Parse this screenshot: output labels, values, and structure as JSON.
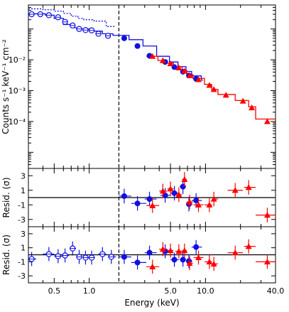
{
  "chart_data": {
    "type": "scatter",
    "x_axis": {
      "label": "Energy (keV)",
      "scale": "log",
      "range": [
        0.3,
        40.0
      ],
      "tick_labels": [
        "0.5",
        "1.0",
        "5.0",
        "10.0",
        "40.0"
      ],
      "tick_values": [
        0.5,
        1.0,
        5.0,
        10.0,
        40.0
      ]
    },
    "vline_energy": 1.8,
    "colors": {
      "blue": "#1010e0",
      "red": "#ff0000",
      "black": "#000000"
    },
    "panels": [
      {
        "id": "spectrum",
        "ylabel": "Counts s⁻¹ keV⁻¹ cm⁻²",
        "y_scale": "log",
        "y_range": [
          3e-06,
          0.6
        ],
        "y_tick_labels": [
          "10⁻²",
          "10⁻³",
          "10⁻⁴"
        ],
        "y_tick_values": [
          0.01,
          0.001,
          0.0001
        ],
        "series": [
          {
            "marker": "open-circle",
            "color": "blue",
            "points": [
              {
                "x": 0.32,
                "y": 0.3
              },
              {
                "x": 0.38,
                "y": 0.3
              },
              {
                "x": 0.45,
                "y": 0.28
              },
              {
                "x": 0.54,
                "y": 0.24
              },
              {
                "x": 0.62,
                "y": 0.17
              },
              {
                "x": 0.72,
                "y": 0.13
              },
              {
                "x": 0.82,
                "y": 0.1
              },
              {
                "x": 0.93,
                "y": 0.092
              },
              {
                "x": 1.05,
                "y": 0.09
              },
              {
                "x": 1.2,
                "y": 0.07
              },
              {
                "x": 1.45,
                "y": 0.06
              }
            ]
          },
          {
            "marker": "filled-circle",
            "color": "blue",
            "points": [
              {
                "x": 2.0,
                "y": 0.05
              },
              {
                "x": 2.6,
                "y": 0.028
              },
              {
                "x": 3.3,
                "y": 0.0135
              },
              {
                "x": 4.5,
                "y": 0.0085
              },
              {
                "x": 5.4,
                "y": 0.0058
              },
              {
                "x": 6.4,
                "y": 0.0041
              },
              {
                "x": 7.2,
                "y": 0.0031
              },
              {
                "x": 8.3,
                "y": 0.0024
              }
            ]
          },
          {
            "marker": "filled-triangle",
            "color": "red",
            "points": [
              {
                "x": 3.5,
                "y": 0.013
              },
              {
                "x": 4.3,
                "y": 0.0095
              },
              {
                "x": 5.0,
                "y": 0.0075
              },
              {
                "x": 5.9,
                "y": 0.0055
              },
              {
                "x": 6.6,
                "y": 0.0043
              },
              {
                "x": 7.3,
                "y": 0.0031
              },
              {
                "x": 8.7,
                "y": 0.0023
              },
              {
                "x": 10.8,
                "y": 0.0015
              },
              {
                "x": 11.8,
                "y": 0.0011
              },
              {
                "x": 15.0,
                "y": 0.00072
              },
              {
                "x": 21.0,
                "y": 0.00046
              },
              {
                "x": 25.0,
                "y": 0.00028
              },
              {
                "x": 34.0,
                "y": 0.0001
              }
            ]
          }
        ],
        "model_steps": [
          {
            "color": "blue",
            "style": "dotted",
            "steps": [
              {
                "x": 0.3,
                "y": 0.45
              },
              {
                "x": 0.4,
                "y": 0.42
              },
              {
                "x": 0.5,
                "y": 0.38
              },
              {
                "x": 0.6,
                "y": 0.32
              },
              {
                "x": 0.7,
                "y": 0.26
              },
              {
                "x": 0.8,
                "y": 0.22
              },
              {
                "x": 0.9,
                "y": 0.2
              },
              {
                "x": 1.1,
                "y": 0.18
              },
              {
                "x": 1.4,
                "y": 0.12
              },
              {
                "x": 1.65,
                "y": 0.12
              }
            ]
          },
          {
            "color": "blue",
            "style": "solid",
            "steps": [
              {
                "x": 0.3,
                "y": 0.31
              },
              {
                "x": 0.42,
                "y": 0.28
              },
              {
                "x": 0.5,
                "y": 0.22
              },
              {
                "x": 0.6,
                "y": 0.14
              },
              {
                "x": 0.7,
                "y": 0.11
              },
              {
                "x": 0.78,
                "y": 0.1
              },
              {
                "x": 1.0,
                "y": 0.085
              },
              {
                "x": 1.3,
                "y": 0.07
              },
              {
                "x": 1.6,
                "y": 0.062
              },
              {
                "x": 2.2,
                "y": 0.045
              },
              {
                "x": 2.9,
                "y": 0.028
              },
              {
                "x": 3.8,
                "y": 0.013
              },
              {
                "x": 4.9,
                "y": 0.0085
              },
              {
                "x": 5.8,
                "y": 0.006
              },
              {
                "x": 6.8,
                "y": 0.0042
              },
              {
                "x": 7.6,
                "y": 0.003
              },
              {
                "x": 9.2,
                "y": 0.0022
              },
              {
                "x": 9.5,
                "y": 0.0022
              }
            ]
          },
          {
            "color": "red",
            "style": "solid",
            "steps": [
              {
                "x": 3.1,
                "y": 0.013
              },
              {
                "x": 3.9,
                "y": 0.0095
              },
              {
                "x": 4.7,
                "y": 0.0078
              },
              {
                "x": 5.3,
                "y": 0.0059
              },
              {
                "x": 6.3,
                "y": 0.0045
              },
              {
                "x": 6.9,
                "y": 0.0033
              },
              {
                "x": 7.8,
                "y": 0.0025
              },
              {
                "x": 9.8,
                "y": 0.0016
              },
              {
                "x": 11.3,
                "y": 0.0011
              },
              {
                "x": 12.8,
                "y": 0.00075
              },
              {
                "x": 18.0,
                "y": 0.00048
              },
              {
                "x": 23.5,
                "y": 0.0003
              },
              {
                "x": 27.0,
                "y": 0.00012
              },
              {
                "x": 40.0,
                "y": 0.00012
              }
            ]
          }
        ]
      },
      {
        "id": "residuals-1",
        "ylabel": "Resid. (σ)",
        "y_range": [
          -4,
          4
        ],
        "y_tick_labels": [
          "3",
          "1",
          "-1",
          "-3"
        ],
        "y_tick_values": [
          3,
          1,
          -1,
          -3
        ],
        "hline": 0,
        "series": [
          {
            "marker": "filled-circle",
            "color": "blue",
            "points": [
              {
                "x": 2.0,
                "y": 0.2,
                "xerr": [
                  1.8,
                  2.3
                ],
                "yerr": 1.0
              },
              {
                "x": 2.6,
                "y": -0.8,
                "xerr": [
                  2.3,
                  3.1
                ],
                "yerr": 1.0
              },
              {
                "x": 3.3,
                "y": -0.2,
                "xerr": [
                  3.0,
                  3.8
                ],
                "yerr": 1.0
              },
              {
                "x": 4.5,
                "y": 0.3,
                "xerr": [
                  4.1,
                  5.0
                ],
                "yerr": 1.0
              },
              {
                "x": 5.4,
                "y": 0.6,
                "xerr": [
                  5.0,
                  5.9
                ],
                "yerr": 1.0
              },
              {
                "x": 6.4,
                "y": 1.5,
                "xerr": [
                  6.0,
                  6.8
                ],
                "yerr": 1.0
              },
              {
                "x": 7.2,
                "y": -0.9,
                "xerr": [
                  6.8,
                  7.7
                ],
                "yerr": 1.0
              },
              {
                "x": 8.3,
                "y": -0.4,
                "xerr": [
                  7.6,
                  9.3
                ],
                "yerr": 1.0
              }
            ]
          },
          {
            "marker": "filled-triangle",
            "color": "red",
            "points": [
              {
                "x": 3.5,
                "y": -1.1,
                "xerr": [
                  3.1,
                  4.0
                ],
                "yerr": 1.0
              },
              {
                "x": 4.3,
                "y": 0.9,
                "xerr": [
                  4.0,
                  4.7
                ],
                "yerr": 1.0
              },
              {
                "x": 5.0,
                "y": 1.2,
                "xerr": [
                  4.7,
                  5.3
                ],
                "yerr": 1.0
              },
              {
                "x": 5.9,
                "y": 0.4,
                "xerr": [
                  5.5,
                  6.3
                ],
                "yerr": 1.0
              },
              {
                "x": 6.6,
                "y": 2.5,
                "xerr": [
                  6.3,
                  6.9
                ],
                "yerr": 1.0
              },
              {
                "x": 7.3,
                "y": -0.6,
                "xerr": [
                  6.9,
                  7.8
                ],
                "yerr": 1.0
              },
              {
                "x": 8.7,
                "y": -1.0,
                "xerr": [
                  7.9,
                  9.6
                ],
                "yerr": 1.0
              },
              {
                "x": 10.8,
                "y": -1.0,
                "xerr": [
                  9.8,
                  11.4
                ],
                "yerr": 1.0
              },
              {
                "x": 11.8,
                "y": -0.2,
                "xerr": [
                  11.4,
                  12.8
                ],
                "yerr": 1.0
              },
              {
                "x": 18.0,
                "y": 1.0,
                "xerr": [
                  15.5,
                  21.0
                ],
                "yerr": 1.0
              },
              {
                "x": 23.5,
                "y": 1.4,
                "xerr": [
                  21.5,
                  27.0
                ],
                "yerr": 1.0
              },
              {
                "x": 34.0,
                "y": -2.4,
                "xerr": [
                  27.0,
                  40.0
                ],
                "yerr": 1.0
              }
            ]
          }
        ]
      },
      {
        "id": "residuals-2",
        "ylabel": "Resid. (σ)",
        "y_range": [
          -4,
          4
        ],
        "y_tick_labels": [
          "3",
          "1",
          "-1",
          "-3"
        ],
        "y_tick_values": [
          3,
          1,
          -1,
          -3
        ],
        "hline": 0,
        "series": [
          {
            "marker": "open-circle",
            "color": "blue",
            "points": [
              {
                "x": 0.32,
                "y": -0.6,
                "xerr": [
                  0.3,
                  0.35
                ],
                "yerr": 1.0
              },
              {
                "x": 0.45,
                "y": 0.1,
                "xerr": [
                  0.4,
                  0.5
                ],
                "yerr": 1.0
              },
              {
                "x": 0.54,
                "y": -0.2,
                "xerr": [
                  0.5,
                  0.59
                ],
                "yerr": 1.0
              },
              {
                "x": 0.62,
                "y": -0.1,
                "xerr": [
                  0.59,
                  0.67
                ],
                "yerr": 1.0
              },
              {
                "x": 0.72,
                "y": 0.9,
                "xerr": [
                  0.68,
                  0.77
                ],
                "yerr": 1.0
              },
              {
                "x": 0.82,
                "y": -0.3,
                "xerr": [
                  0.78,
                  0.87
                ],
                "yerr": 1.0
              },
              {
                "x": 0.93,
                "y": -0.4,
                "xerr": [
                  0.88,
                  0.99
                ],
                "yerr": 1.0
              },
              {
                "x": 1.05,
                "y": -0.4,
                "xerr": [
                  1.0,
                  1.12
                ],
                "yerr": 1.0
              },
              {
                "x": 1.3,
                "y": 0.1,
                "xerr": [
                  1.2,
                  1.4
                ],
                "yerr": 1.0
              },
              {
                "x": 1.55,
                "y": -0.3,
                "xerr": [
                  1.45,
                  1.7
                ],
                "yerr": 1.0
              }
            ]
          },
          {
            "marker": "filled-circle",
            "color": "blue",
            "points": [
              {
                "x": 2.0,
                "y": -0.3,
                "xerr": [
                  1.8,
                  2.3
                ],
                "yerr": 1.0
              },
              {
                "x": 2.6,
                "y": -1.1,
                "xerr": [
                  2.3,
                  3.1
                ],
                "yerr": 1.0
              },
              {
                "x": 3.3,
                "y": 0.3,
                "xerr": [
                  3.0,
                  3.8
                ],
                "yerr": 1.0
              },
              {
                "x": 4.5,
                "y": 0.5,
                "xerr": [
                  4.1,
                  5.0
                ],
                "yerr": 1.0
              },
              {
                "x": 5.4,
                "y": -0.7,
                "xerr": [
                  5.0,
                  5.9
                ],
                "yerr": 1.0
              },
              {
                "x": 6.4,
                "y": -0.7,
                "xerr": [
                  6.0,
                  6.8
                ],
                "yerr": 1.0
              },
              {
                "x": 7.2,
                "y": -0.9,
                "xerr": [
                  6.8,
                  7.7
                ],
                "yerr": 1.0
              },
              {
                "x": 8.3,
                "y": 1.1,
                "xerr": [
                  7.6,
                  9.3
                ],
                "yerr": 1.0
              }
            ]
          },
          {
            "marker": "filled-triangle",
            "color": "red",
            "points": [
              {
                "x": 3.5,
                "y": -1.7,
                "xerr": [
                  3.1,
                  4.0
                ],
                "yerr": 1.0
              },
              {
                "x": 4.3,
                "y": 0.8,
                "xerr": [
                  4.0,
                  4.7
                ],
                "yerr": 1.0
              },
              {
                "x": 5.0,
                "y": 0.6,
                "xerr": [
                  4.7,
                  5.3
                ],
                "yerr": 1.0
              },
              {
                "x": 5.9,
                "y": 0.5,
                "xerr": [
                  5.5,
                  6.3
                ],
                "yerr": 1.0
              },
              {
                "x": 6.6,
                "y": 0.6,
                "xerr": [
                  6.3,
                  6.9
                ],
                "yerr": 1.0
              },
              {
                "x": 7.3,
                "y": -1.2,
                "xerr": [
                  6.9,
                  7.8
                ],
                "yerr": 1.0
              },
              {
                "x": 8.7,
                "y": -0.4,
                "xerr": [
                  7.9,
                  9.6
                ],
                "yerr": 1.0
              },
              {
                "x": 10.8,
                "y": -1.0,
                "xerr": [
                  9.8,
                  11.4
                ],
                "yerr": 1.0
              },
              {
                "x": 11.8,
                "y": -1.3,
                "xerr": [
                  11.4,
                  12.8
                ],
                "yerr": 1.0
              },
              {
                "x": 18.0,
                "y": 0.3,
                "xerr": [
                  15.5,
                  21.0
                ],
                "yerr": 1.0
              },
              {
                "x": 23.5,
                "y": 1.2,
                "xerr": [
                  21.5,
                  27.0
                ],
                "yerr": 1.0
              },
              {
                "x": 34.0,
                "y": -1.0,
                "xerr": [
                  27.0,
                  40.0
                ],
                "yerr": 1.0
              }
            ]
          }
        ]
      }
    ]
  }
}
